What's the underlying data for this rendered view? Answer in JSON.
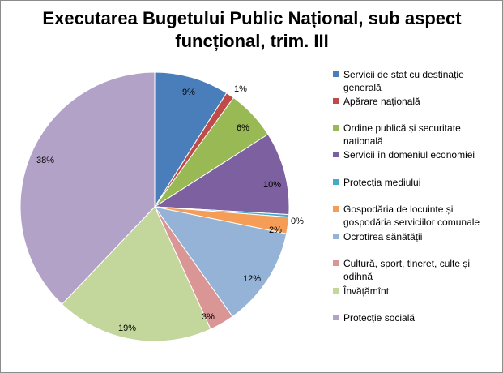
{
  "chart_data": {
    "type": "pie",
    "title": "Executarea Bugetului Public Național, sub aspect funcțional, trim. III",
    "slices": [
      {
        "label": "Servicii de stat cu destinație generală",
        "value": 9,
        "display": "9%",
        "color": "#4a7ebb"
      },
      {
        "label": "Apărare națională",
        "value": 1,
        "display": "1%",
        "color": "#be4b48"
      },
      {
        "label": "Ordine publică și securitate națională",
        "value": 6,
        "display": "6%",
        "color": "#98b954"
      },
      {
        "label": "Servicii în domeniul economiei",
        "value": 10,
        "display": "10%",
        "color": "#7d60a0"
      },
      {
        "label": "Protecția mediului",
        "value": 0.3,
        "display": "0%",
        "color": "#46aac5"
      },
      {
        "label": "Gospodăria de locuințe și gospodăria serviciilor comunale",
        "value": 2,
        "display": "2%",
        "color": "#f59d56"
      },
      {
        "label": "Ocrotirea sănătății",
        "value": 12,
        "display": "12%",
        "color": "#95b3d7"
      },
      {
        "label": "Cultură, sport, tineret, culte și odihnă",
        "value": 3,
        "display": "3%",
        "color": "#d99694"
      },
      {
        "label": "Învățămînt",
        "value": 19,
        "display": "19%",
        "color": "#c3d69b"
      },
      {
        "label": "Protecție socială",
        "value": 38,
        "display": "38%",
        "color": "#b3a2c7"
      }
    ],
    "legend_position": "right"
  }
}
